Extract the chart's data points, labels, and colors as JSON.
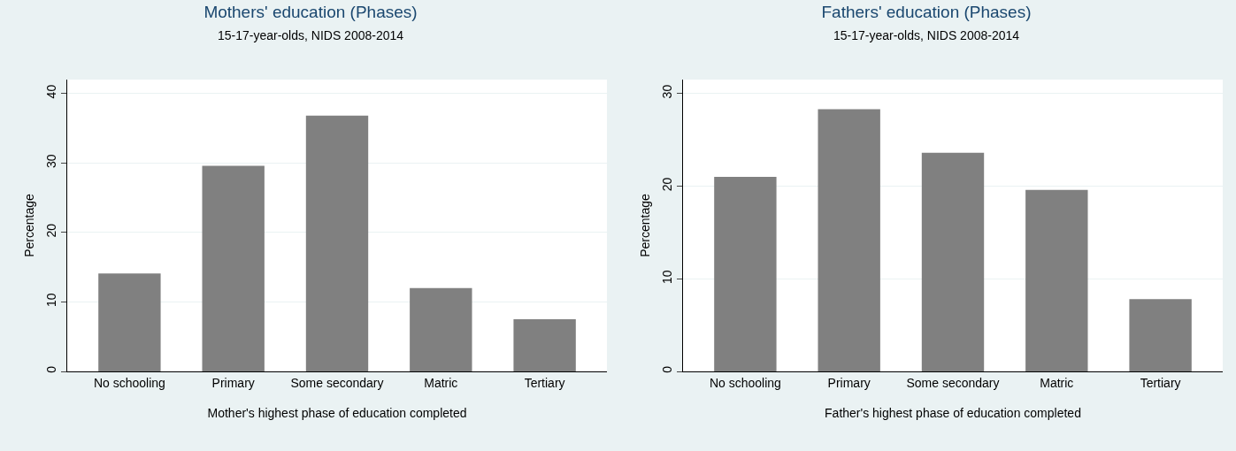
{
  "chart_data": [
    {
      "type": "bar",
      "title": "Mothers' education (Phases)",
      "subtitle": "15-17-year-olds, NIDS 2008-2014",
      "xlabel": "Mother's highest phase of education completed",
      "ylabel": "Percentage",
      "categories": [
        "No schooling",
        "Primary",
        "Some secondary",
        "Matric",
        "Tertiary"
      ],
      "values": [
        14.1,
        29.6,
        36.8,
        12.0,
        7.5
      ],
      "color": "#808080",
      "ylim": [
        0,
        42
      ],
      "yticks": [
        0,
        10,
        20,
        30,
        40
      ],
      "grid": "y"
    },
    {
      "type": "bar",
      "title": "Fathers' education (Phases)",
      "subtitle": "15-17-year-olds, NIDS 2008-2014",
      "xlabel": "Father's highest phase of education completed",
      "ylabel": "Percentage",
      "categories": [
        "No schooling",
        "Primary",
        "Some secondary",
        "Matric",
        "Tertiary"
      ],
      "values": [
        21.0,
        28.3,
        23.6,
        19.6,
        7.8
      ],
      "color": "#808080",
      "ylim": [
        0,
        31.5
      ],
      "yticks": [
        0,
        10,
        20,
        30
      ],
      "grid": "y"
    }
  ]
}
